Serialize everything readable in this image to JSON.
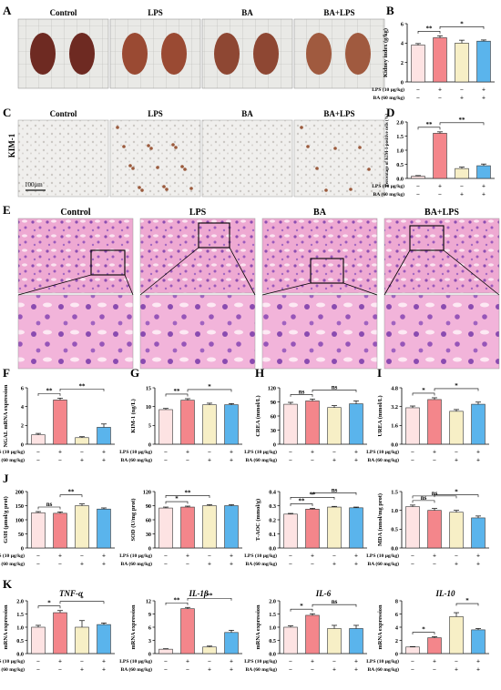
{
  "colors": {
    "control": "#fde3e3",
    "lps": "#f4868b",
    "ba": "#f7efc6",
    "ba_lps": "#5ab4ec",
    "edge": "#333333",
    "sig": "#222222"
  },
  "panels": {
    "A": {
      "letter": "A",
      "labels": [
        "Control",
        "LPS",
        "BA",
        "BA+LPS"
      ]
    },
    "B": {
      "letter": "B"
    },
    "C": {
      "letter": "C",
      "side_label": "KIM-1",
      "scale_bar": "100μm",
      "labels": [
        "Control",
        "LPS",
        "BA",
        "BA+LPS"
      ]
    },
    "D": {
      "letter": "D"
    },
    "E": {
      "letter": "E",
      "labels": [
        "Control",
        "LPS",
        "BA",
        "BA+LPS"
      ]
    },
    "F": {
      "letter": "F"
    },
    "G": {
      "letter": "G"
    },
    "H": {
      "letter": "H"
    },
    "I": {
      "letter": "I"
    },
    "J": {
      "letter": "J"
    },
    "K": {
      "letter": "K"
    }
  },
  "row_labels": {
    "lps": "LPS (10 μg/kg)",
    "ba": "BA (60 mg/kg)"
  },
  "treat_signs": {
    "lps": [
      "−",
      "+",
      "−",
      "+"
    ],
    "ba": [
      "−",
      "−",
      "+",
      "+"
    ]
  },
  "chart_data": [
    {
      "id": "B",
      "type": "bar",
      "categories": [
        "Control",
        "LPS",
        "BA",
        "BA+LPS"
      ],
      "values": [
        3.8,
        4.55,
        4.0,
        4.2
      ],
      "errors": [
        0.15,
        0.2,
        0.3,
        0.12
      ],
      "ylabel": "Kidney index (g/kg)",
      "ylim": [
        0,
        6
      ],
      "yticks": [
        "0",
        "2",
        "4",
        "6"
      ],
      "sig": [
        {
          "a": 0,
          "b": 1,
          "label": "**"
        },
        {
          "a": 1,
          "b": 3,
          "label": "*"
        }
      ]
    },
    {
      "id": "D",
      "type": "bar",
      "categories": [
        "Control",
        "LPS",
        "BA",
        "BA+LPS"
      ],
      "values": [
        0.08,
        1.6,
        0.35,
        0.45
      ],
      "errors": [
        0.02,
        0.05,
        0.05,
        0.06
      ],
      "ylabel": "Percentage of KIM-1-positive cells (%)",
      "ylim": [
        0,
        2.0
      ],
      "yticks": [
        "0.0",
        "0.5",
        "1.0",
        "1.5",
        "2.0"
      ],
      "sig": [
        {
          "a": 0,
          "b": 1,
          "label": "**"
        },
        {
          "a": 1,
          "b": 3,
          "label": "**"
        }
      ]
    },
    {
      "id": "F",
      "type": "bar",
      "categories": [
        "Control",
        "LPS",
        "BA",
        "BA+LPS"
      ],
      "values": [
        1.0,
        4.7,
        0.7,
        1.8
      ],
      "errors": [
        0.15,
        0.2,
        0.1,
        0.35
      ],
      "ylabel": "NGAL mRNA expression",
      "ylim": [
        0,
        6
      ],
      "yticks": [
        "0",
        "2",
        "4",
        "6"
      ],
      "sig": [
        {
          "a": 0,
          "b": 1,
          "label": "**"
        },
        {
          "a": 1,
          "b": 3,
          "label": "**"
        }
      ]
    },
    {
      "id": "G",
      "type": "bar",
      "categories": [
        "Control",
        "LPS",
        "BA",
        "BA+LPS"
      ],
      "values": [
        9.2,
        11.7,
        10.5,
        10.5
      ],
      "errors": [
        0.3,
        0.4,
        0.4,
        0.3
      ],
      "ylabel": "KIM-1 (ng/L)",
      "ylim": [
        0,
        15
      ],
      "yticks": [
        "0",
        "5",
        "10",
        "15"
      ],
      "sig": [
        {
          "a": 0,
          "b": 1,
          "label": "**"
        },
        {
          "a": 1,
          "b": 3,
          "label": "*"
        }
      ]
    },
    {
      "id": "H",
      "type": "bar",
      "categories": [
        "Control",
        "LPS",
        "BA",
        "BA+LPS"
      ],
      "values": [
        85,
        92,
        78,
        86
      ],
      "errors": [
        4,
        4,
        4,
        6
      ],
      "ylabel": "CREA (mmol/L)",
      "ylim": [
        0,
        120
      ],
      "yticks": [
        "0",
        "30",
        "60",
        "90",
        "120"
      ],
      "sig": [
        {
          "a": 0,
          "b": 1,
          "label": "ns"
        },
        {
          "a": 1,
          "b": 3,
          "label": "ns"
        }
      ]
    },
    {
      "id": "I",
      "type": "bar",
      "categories": [
        "Control",
        "LPS",
        "BA",
        "BA+LPS"
      ],
      "values": [
        3.1,
        3.8,
        2.8,
        3.4
      ],
      "errors": [
        0.15,
        0.15,
        0.15,
        0.18
      ],
      "ylabel": "UREA (mmol/L)",
      "ylim": [
        0,
        4.8
      ],
      "yticks": [
        "0.0",
        "1.6",
        "3.2",
        "4.8"
      ],
      "sig": [
        {
          "a": 0,
          "b": 1,
          "label": "*"
        },
        {
          "a": 1,
          "b": 3,
          "label": "*"
        }
      ]
    },
    {
      "id": "J1",
      "type": "bar",
      "categories": [
        "Control",
        "LPS",
        "BA",
        "BA+LPS"
      ],
      "values": [
        125,
        123,
        150,
        138
      ],
      "errors": [
        4,
        5,
        6,
        4
      ],
      "ylabel": "GSH (μmol/g prot)",
      "ylim": [
        0,
        200
      ],
      "yticks": [
        "0",
        "50",
        "100",
        "150",
        "200"
      ],
      "sig": [
        {
          "a": 0,
          "b": 1,
          "label": "ns"
        },
        {
          "a": 1,
          "b": 2,
          "label": "**"
        }
      ]
    },
    {
      "id": "J2",
      "type": "bar",
      "categories": [
        "Control",
        "LPS",
        "BA",
        "BA+LPS"
      ],
      "values": [
        85,
        87,
        90,
        90
      ],
      "errors": [
        2,
        2,
        2,
        2
      ],
      "ylabel": "SOD (U/mg prot)",
      "ylim": [
        0,
        120
      ],
      "yticks": [
        "0",
        "30",
        "60",
        "90",
        "120"
      ],
      "sig": [
        {
          "a": 0,
          "b": 1,
          "label": "*"
        },
        {
          "a": 0,
          "b": 2,
          "label": "**"
        }
      ]
    },
    {
      "id": "J3",
      "type": "bar",
      "categories": [
        "Control",
        "LPS",
        "BA",
        "BA+LPS"
      ],
      "values": [
        0.24,
        0.275,
        0.29,
        0.285
      ],
      "errors": [
        0.005,
        0.006,
        0.005,
        0.005
      ],
      "ylabel": "T-AOC (mmol/g)",
      "ylim": [
        0,
        0.4
      ],
      "yticks": [
        "0.0",
        "0.1",
        "0.2",
        "0.3",
        "0.4"
      ],
      "sig": [
        {
          "a": 0,
          "b": 1,
          "label": "**"
        },
        {
          "a": 0,
          "b": 2,
          "label": "**"
        },
        {
          "a": 1,
          "b": 3,
          "label": "ns"
        }
      ]
    },
    {
      "id": "J4",
      "type": "bar",
      "categories": [
        "Control",
        "LPS",
        "BA",
        "BA+LPS"
      ],
      "values": [
        1.1,
        1.0,
        0.95,
        0.8
      ],
      "errors": [
        0.04,
        0.05,
        0.05,
        0.05
      ],
      "ylabel": "MDA (nmol/mg prot)",
      "ylim": [
        0,
        1.5
      ],
      "yticks": [
        "0.0",
        "0.5",
        "1.0",
        "1.5"
      ],
      "sig": [
        {
          "a": 0,
          "b": 1,
          "label": "ns"
        },
        {
          "a": 0,
          "b": 2,
          "label": "ns"
        },
        {
          "a": 1,
          "b": 3,
          "label": "*"
        }
      ]
    },
    {
      "id": "K1",
      "type": "bar",
      "title": "TNF-α",
      "categories": [
        "Control",
        "LPS",
        "BA",
        "BA+LPS"
      ],
      "values": [
        1.0,
        1.55,
        1.0,
        1.1
      ],
      "errors": [
        0.07,
        0.08,
        0.25,
        0.06
      ],
      "ylabel": "mRNA expression",
      "ylim": [
        0,
        2.0
      ],
      "yticks": [
        "0.0",
        "0.5",
        "1.0",
        "1.5",
        "2.0"
      ],
      "sig": [
        {
          "a": 0,
          "b": 1,
          "label": "*"
        },
        {
          "a": 1,
          "b": 3,
          "label": "*"
        }
      ]
    },
    {
      "id": "K2",
      "type": "bar",
      "title": "IL-1β",
      "categories": [
        "Control",
        "LPS",
        "BA",
        "BA+LPS"
      ],
      "values": [
        1.0,
        10.2,
        1.5,
        4.8
      ],
      "errors": [
        0.1,
        0.3,
        0.2,
        0.5
      ],
      "ylabel": "mRNA expression",
      "ylim": [
        0,
        12
      ],
      "yticks": [
        "0",
        "3",
        "6",
        "9",
        "12"
      ],
      "sig": [
        {
          "a": 0,
          "b": 1,
          "label": "**"
        },
        {
          "a": 1,
          "b": 3,
          "label": "**"
        }
      ]
    },
    {
      "id": "K3",
      "type": "bar",
      "title": "IL-6",
      "categories": [
        "Control",
        "LPS",
        "BA",
        "BA+LPS"
      ],
      "values": [
        1.0,
        1.45,
        0.95,
        0.95
      ],
      "errors": [
        0.05,
        0.06,
        0.12,
        0.12
      ],
      "ylabel": "mRNA expression",
      "ylim": [
        0,
        2.0
      ],
      "yticks": [
        "0.0",
        "0.5",
        "1.0",
        "1.5",
        "2.0"
      ],
      "sig": [
        {
          "a": 0,
          "b": 1,
          "label": "*"
        },
        {
          "a": 1,
          "b": 3,
          "label": "ns"
        }
      ]
    },
    {
      "id": "K4",
      "type": "bar",
      "title": "IL-10",
      "categories": [
        "Control",
        "LPS",
        "BA",
        "BA+LPS"
      ],
      "values": [
        1.0,
        2.4,
        5.6,
        3.6
      ],
      "errors": [
        0.05,
        0.15,
        0.6,
        0.2
      ],
      "ylabel": "mRNA expression",
      "ylim": [
        0,
        8
      ],
      "yticks": [
        "0",
        "2",
        "4",
        "6",
        "8"
      ],
      "sig": [
        {
          "a": 0,
          "b": 1,
          "label": "*"
        },
        {
          "a": 2,
          "b": 3,
          "label": "*"
        }
      ]
    }
  ]
}
